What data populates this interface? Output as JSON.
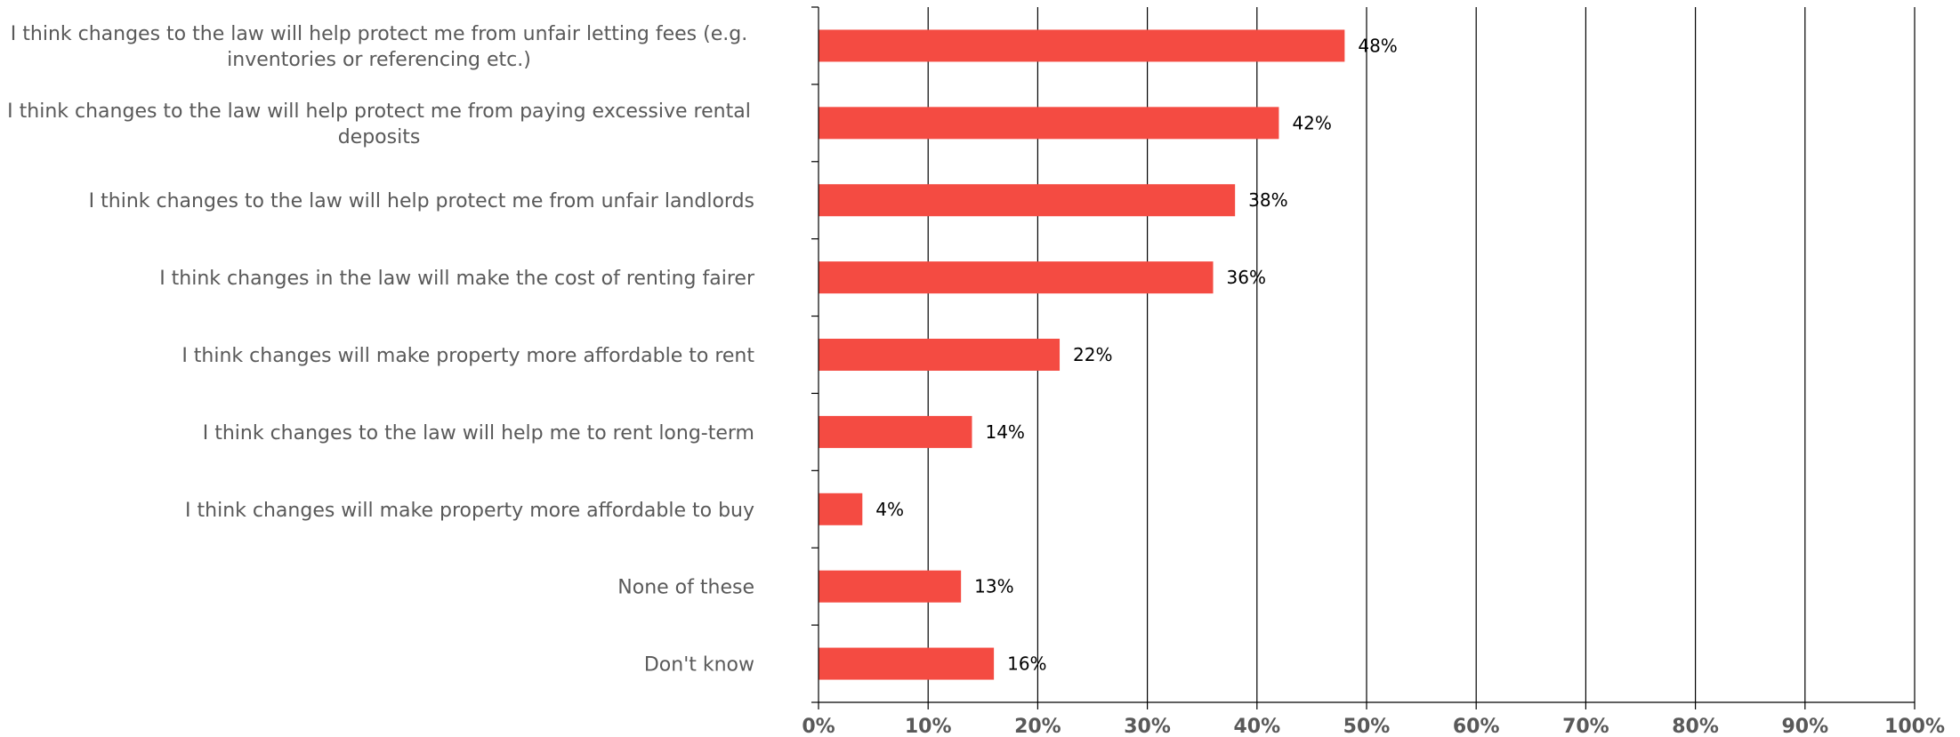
{
  "chart_data": {
    "type": "bar",
    "orientation": "horizontal",
    "categories": [
      [
        "I think changes to the law will help protect me from unfair letting fees (e.g.",
        "inventories or referencing etc.)"
      ],
      [
        "I think changes to the law will help protect me from paying excessive rental",
        "deposits"
      ],
      [
        "I think changes to the law will help protect me from unfair landlords"
      ],
      [
        "I think changes in the law will make the cost of renting fairer"
      ],
      [
        "I think changes will make property more affordable to rent"
      ],
      [
        "I think changes to the law will help me to rent long-term"
      ],
      [
        "I think changes will make property more affordable to buy"
      ],
      [
        "None of these"
      ],
      [
        "Don't know"
      ]
    ],
    "values": [
      48,
      42,
      38,
      36,
      22,
      14,
      4,
      13,
      16
    ],
    "data_labels": [
      "48%",
      "42%",
      "38%",
      "36%",
      "22%",
      "14%",
      "4%",
      "13%",
      "16%"
    ],
    "xlim": [
      0,
      100
    ],
    "x_ticks": [
      "0%",
      "10%",
      "20%",
      "30%",
      "40%",
      "50%",
      "60%",
      "70%",
      "80%",
      "90%",
      "100%"
    ],
    "grid": "vertical",
    "bar_color": "#f44b42",
    "title": "",
    "xlabel": "",
    "ylabel": ""
  }
}
